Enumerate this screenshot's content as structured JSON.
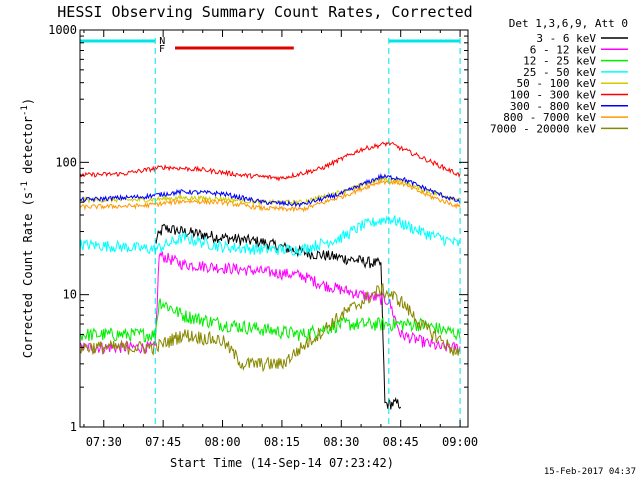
{
  "chart_data": {
    "type": "line",
    "title": "HESSI Observing Summary Count Rates, Corrected",
    "xlabel": "Start Time (14-Sep-14 07:23:42)",
    "ylabel": "Corrected Count Rate (s",
    "ylabel_sup1": "-1",
    "ylabel_mid": " detector",
    "ylabel_sup2": "-1",
    "ylabel_end": ")",
    "y_scale": "log",
    "ylim": [
      1,
      1000
    ],
    "xlim": [
      "07:24",
      "09:02"
    ],
    "x_ticks": [
      "07:30",
      "07:45",
      "08:00",
      "08:15",
      "08:30",
      "08:45",
      "09:00"
    ],
    "y_ticks": [
      "1",
      "10",
      "100",
      "1000"
    ],
    "legend_header": "Det 1,3,6,9, Att 0",
    "legend_position": "right",
    "timestamp": "15-Feb-2017 04:37",
    "flags": {
      "night_label": "N",
      "flare_label": "F",
      "night_color": "#00e5e5",
      "flare_color": "#e00000",
      "night_intervals": [
        [
          "07:24",
          "07:43"
        ],
        [
          "08:42",
          "09:00"
        ]
      ],
      "flare_interval": [
        "07:48",
        "08:18"
      ],
      "vertical_markers": [
        "07:43",
        "08:42",
        "09:00"
      ]
    },
    "series": [
      {
        "name": "3 - 6 keV",
        "color": "#000000",
        "noise": 0.1,
        "points": [
          [
            "07:43",
            25
          ],
          [
            "07:45",
            32
          ],
          [
            "07:50",
            30
          ],
          [
            "08:00",
            27
          ],
          [
            "08:10",
            25
          ],
          [
            "08:20",
            21
          ],
          [
            "08:30",
            19
          ],
          [
            "08:40",
            17
          ],
          [
            "08:41",
            1.5
          ],
          [
            "08:45",
            1.5
          ]
        ]
      },
      {
        "name": "6 - 12 keV",
        "color": "#ff00ff",
        "noise": 0.1,
        "points": [
          [
            "07:24",
            4
          ],
          [
            "07:43",
            4
          ],
          [
            "07:44",
            20
          ],
          [
            "07:50",
            17
          ],
          [
            "08:00",
            16
          ],
          [
            "08:10",
            15
          ],
          [
            "08:20",
            14
          ],
          [
            "08:25",
            12
          ],
          [
            "08:35",
            10
          ],
          [
            "08:42",
            9
          ],
          [
            "08:45",
            5
          ],
          [
            "08:55",
            4
          ],
          [
            "09:00",
            4
          ]
        ]
      },
      {
        "name": "12 - 25 keV",
        "color": "#00ee00",
        "noise": 0.12,
        "points": [
          [
            "07:24",
            5
          ],
          [
            "07:43",
            5
          ],
          [
            "07:44",
            9
          ],
          [
            "07:50",
            7
          ],
          [
            "08:00",
            6
          ],
          [
            "08:10",
            5.5
          ],
          [
            "08:20",
            5
          ],
          [
            "08:30",
            6
          ],
          [
            "08:40",
            6
          ],
          [
            "08:50",
            6
          ],
          [
            "09:00",
            5
          ]
        ]
      },
      {
        "name": "25 - 50 keV",
        "color": "#00ffff",
        "noise": 0.1,
        "points": [
          [
            "07:24",
            24
          ],
          [
            "07:35",
            23
          ],
          [
            "07:43",
            22
          ],
          [
            "07:50",
            27
          ],
          [
            "08:00",
            23
          ],
          [
            "08:10",
            22
          ],
          [
            "08:20",
            22
          ],
          [
            "08:30",
            27
          ],
          [
            "08:35",
            33
          ],
          [
            "08:42",
            38
          ],
          [
            "08:50",
            30
          ],
          [
            "09:00",
            24
          ]
        ]
      },
      {
        "name": "50 - 100 keV",
        "color": "#cccc00",
        "noise": 0.04,
        "points": [
          [
            "07:24",
            52
          ],
          [
            "07:40",
            52
          ],
          [
            "07:50",
            54
          ],
          [
            "08:00",
            53
          ],
          [
            "08:10",
            50
          ],
          [
            "08:20",
            50
          ],
          [
            "08:30",
            60
          ],
          [
            "08:40",
            75
          ],
          [
            "08:45",
            72
          ],
          [
            "08:52",
            60
          ],
          [
            "09:00",
            52
          ]
        ]
      },
      {
        "name": "100 - 300 keV",
        "color": "#ff0000",
        "noise": 0.04,
        "points": [
          [
            "07:24",
            80
          ],
          [
            "07:35",
            82
          ],
          [
            "07:45",
            92
          ],
          [
            "07:55",
            88
          ],
          [
            "08:05",
            80
          ],
          [
            "08:15",
            76
          ],
          [
            "08:25",
            90
          ],
          [
            "08:35",
            125
          ],
          [
            "08:42",
            140
          ],
          [
            "08:50",
            110
          ],
          [
            "09:00",
            80
          ]
        ]
      },
      {
        "name": "300 - 800 keV",
        "color": "#0000ff",
        "noise": 0.04,
        "points": [
          [
            "07:24",
            52
          ],
          [
            "07:40",
            55
          ],
          [
            "07:50",
            60
          ],
          [
            "08:00",
            58
          ],
          [
            "08:10",
            50
          ],
          [
            "08:20",
            48
          ],
          [
            "08:30",
            58
          ],
          [
            "08:40",
            78
          ],
          [
            "08:45",
            76
          ],
          [
            "08:52",
            62
          ],
          [
            "09:00",
            50
          ]
        ]
      },
      {
        "name": "800 - 7000 keV",
        "color": "#ff9900",
        "noise": 0.04,
        "points": [
          [
            "07:24",
            46
          ],
          [
            "07:40",
            47
          ],
          [
            "07:50",
            51
          ],
          [
            "08:00",
            50
          ],
          [
            "08:10",
            45
          ],
          [
            "08:20",
            44
          ],
          [
            "08:30",
            55
          ],
          [
            "08:40",
            72
          ],
          [
            "08:45",
            70
          ],
          [
            "08:52",
            56
          ],
          [
            "09:00",
            46
          ]
        ]
      },
      {
        "name": "7000 - 20000 keV",
        "color": "#888800",
        "noise": 0.12,
        "points": [
          [
            "07:24",
            4
          ],
          [
            "07:43",
            4
          ],
          [
            "07:50",
            5
          ],
          [
            "08:00",
            4.5
          ],
          [
            "08:05",
            3
          ],
          [
            "08:15",
            3
          ],
          [
            "08:20",
            4
          ],
          [
            "08:30",
            7
          ],
          [
            "08:40",
            11
          ],
          [
            "08:45",
            9
          ],
          [
            "08:50",
            6
          ],
          [
            "09:00",
            3.5
          ]
        ]
      }
    ]
  }
}
